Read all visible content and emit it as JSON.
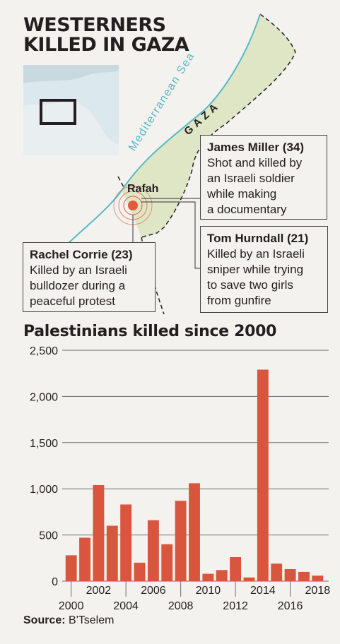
{
  "headline": {
    "line1": "WESTERNERS",
    "line2": "KILLED IN GAZA"
  },
  "map": {
    "sea_label": "Mediterranean Sea",
    "region_label": "GAZA",
    "city_label": "Rafah",
    "colors": {
      "land": "#dfe6c6",
      "sea_line": "#58b9c5",
      "marker": "#e05a3c",
      "inset": "#dbe8ee"
    }
  },
  "callouts": [
    {
      "name": "James Miller (34)",
      "desc": [
        "Shot and killed by",
        "an Israeli soldier",
        "while making",
        "a documentary"
      ]
    },
    {
      "name": "Tom Hurndall (21)",
      "desc": [
        "Killed by an Israeli",
        "sniper while trying",
        "to save two girls",
        "from gunfire"
      ]
    },
    {
      "name": "Rachel Corrie (23)",
      "desc": [
        "Killed by an Israeli",
        "bulldozer during a",
        "peaceful protest"
      ]
    }
  ],
  "chart_data": {
    "type": "bar",
    "title": "Palestinians killed since 2000",
    "categories": [
      "2000",
      "2001",
      "2002",
      "2003",
      "2004",
      "2005",
      "2006",
      "2007",
      "2008",
      "2009",
      "2010",
      "2011",
      "2012",
      "2013",
      "2014",
      "2015",
      "2016",
      "2017",
      "2018"
    ],
    "values": [
      280,
      470,
      1040,
      600,
      830,
      200,
      660,
      400,
      870,
      1060,
      80,
      120,
      260,
      40,
      2290,
      190,
      130,
      100,
      60
    ],
    "ylim": [
      0,
      2500
    ],
    "yticks": [
      "2,500",
      "2,000",
      "1,500",
      "1,000",
      "500",
      "0"
    ],
    "xlabels_upper": [
      "2002",
      "2006",
      "2010",
      "2014",
      "2018"
    ],
    "xlabels_lower": [
      "2000",
      "2004",
      "2008",
      "2012",
      "2016"
    ],
    "bar_color": "#d9553d",
    "grid": true
  },
  "source": {
    "label": "Source:",
    "value": "B'Tselem"
  }
}
